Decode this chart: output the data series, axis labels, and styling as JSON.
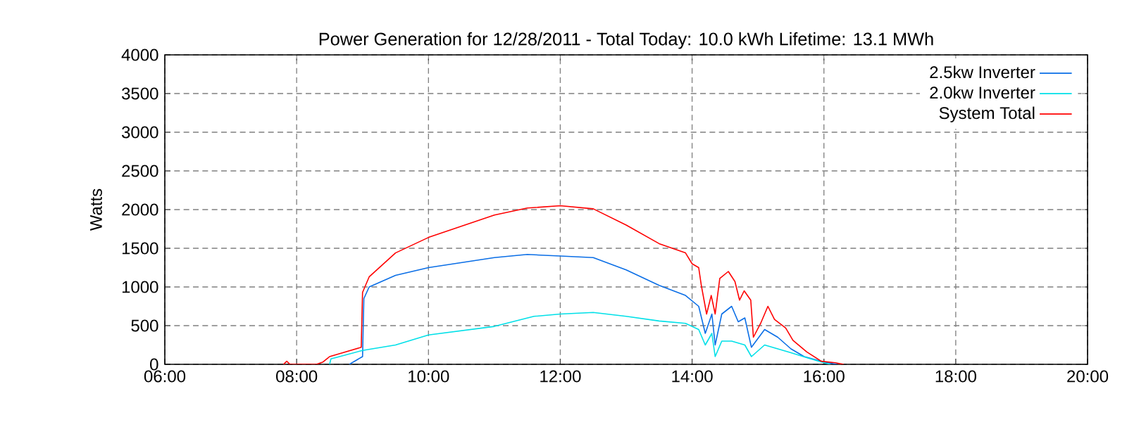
{
  "chart_data": {
    "type": "line",
    "title": "Power Generation for 12/28/2011 - Total Today: 10.0 kWh   Lifetime: 13.1 MWh",
    "ylabel": "Watts",
    "xlim": [
      6,
      20
    ],
    "ylim": [
      0,
      4000
    ],
    "xticks": [
      {
        "value": 6,
        "label": "06:00"
      },
      {
        "value": 8,
        "label": "08:00"
      },
      {
        "value": 10,
        "label": "10:00"
      },
      {
        "value": 12,
        "label": "12:00"
      },
      {
        "value": 14,
        "label": "14:00"
      },
      {
        "value": 16,
        "label": "16:00"
      },
      {
        "value": 18,
        "label": "18:00"
      },
      {
        "value": 20,
        "label": "20:00"
      }
    ],
    "yticks": [
      0,
      500,
      1000,
      1500,
      2000,
      2500,
      3000,
      3500,
      4000
    ],
    "grid": true,
    "legend": "top right",
    "marker": "none",
    "line_style": "solid",
    "series": [
      {
        "name": "2.5kw Inverter",
        "color": "#0a6ee6",
        "x": [
          8.8,
          9.0,
          9.02,
          9.1,
          9.5,
          10,
          11,
          11.5,
          12,
          12.5,
          13,
          13.5,
          13.9,
          14.1,
          14.2,
          14.3,
          14.35,
          14.45,
          14.6,
          14.7,
          14.8,
          14.9,
          15.1,
          15.3,
          15.5,
          15.7,
          16,
          16.2
        ],
        "values": [
          0,
          100,
          850,
          1000,
          1150,
          1250,
          1380,
          1420,
          1400,
          1380,
          1220,
          1020,
          890,
          750,
          400,
          650,
          250,
          650,
          750,
          550,
          600,
          220,
          450,
          350,
          200,
          100,
          30,
          0
        ]
      },
      {
        "name": "2.0kw Inverter",
        "color": "#00e0e8",
        "x": [
          8.5,
          8.52,
          9.0,
          9.5,
          10,
          11,
          11.6,
          12,
          12.5,
          13,
          13.5,
          13.9,
          14.1,
          14.2,
          14.3,
          14.35,
          14.45,
          14.6,
          14.8,
          14.9,
          15.1,
          15.3,
          15.5,
          15.8,
          16.0,
          16.1
        ],
        "values": [
          0,
          70,
          180,
          250,
          380,
          490,
          620,
          650,
          670,
          620,
          560,
          530,
          450,
          250,
          400,
          100,
          300,
          300,
          250,
          100,
          250,
          200,
          150,
          70,
          20,
          0
        ]
      },
      {
        "name": "System Total",
        "color": "#ff0000",
        "x": [
          7.8,
          7.85,
          7.9,
          8.3,
          8.4,
          8.5,
          8.7,
          8.98,
          9.0,
          9.1,
          9.5,
          10,
          11,
          11.5,
          12,
          12.5,
          13,
          13.5,
          13.9,
          14.0,
          14.1,
          14.14,
          14.22,
          14.29,
          14.35,
          14.42,
          14.55,
          14.65,
          14.72,
          14.79,
          14.89,
          14.93,
          15.04,
          15.15,
          15.25,
          15.42,
          15.53,
          15.74,
          15.96,
          16.17,
          16.3
        ],
        "values": [
          0,
          40,
          0,
          0,
          30,
          100,
          150,
          220,
          930,
          1130,
          1440,
          1640,
          1930,
          2020,
          2050,
          2010,
          1800,
          1560,
          1440,
          1300,
          1250,
          1020,
          650,
          890,
          650,
          1110,
          1200,
          1070,
          830,
          950,
          830,
          350,
          530,
          750,
          580,
          470,
          310,
          160,
          40,
          20,
          0
        ]
      }
    ]
  }
}
